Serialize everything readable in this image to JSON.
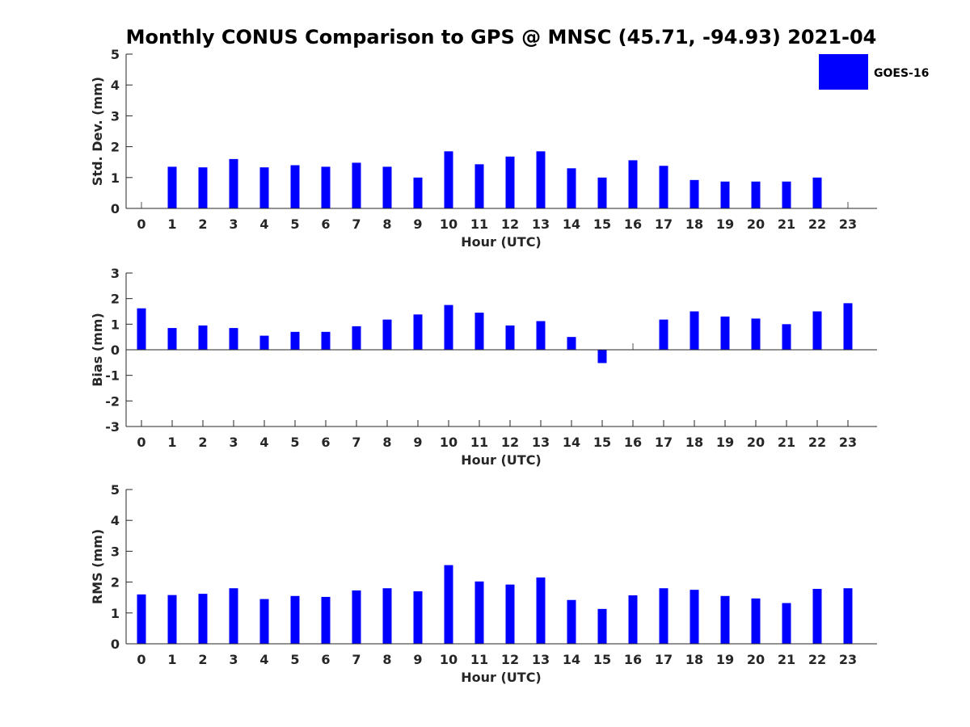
{
  "chart_data": {
    "title": "Monthly CONUS Comparison to GPS @ MNSC (45.71, -94.93) 2021-04",
    "legend": {
      "label": "GOES-16",
      "color": "#0000ff",
      "placement": "top-right"
    },
    "panels": [
      {
        "type": "bar",
        "name": "std-dev",
        "ylabel": "Std. Dev. (mm)",
        "xlabel": "Hour (UTC)",
        "ylim": [
          0,
          5
        ],
        "yticks": [
          "0",
          "1",
          "2",
          "3",
          "4",
          "5"
        ],
        "categories": [
          "0",
          "1",
          "2",
          "3",
          "4",
          "5",
          "6",
          "7",
          "8",
          "9",
          "10",
          "11",
          "12",
          "13",
          "14",
          "15",
          "16",
          "17",
          "18",
          "19",
          "20",
          "21",
          "22",
          "23"
        ],
        "values": [
          null,
          1.35,
          1.33,
          1.6,
          1.33,
          1.4,
          1.35,
          1.48,
          1.35,
          1.0,
          1.85,
          1.43,
          1.68,
          1.85,
          1.3,
          1.0,
          1.56,
          1.38,
          0.92,
          0.87,
          0.87,
          0.87,
          1.0,
          null
        ]
      },
      {
        "type": "bar",
        "name": "bias",
        "ylabel": "Bias (mm)",
        "xlabel": "Hour (UTC)",
        "ylim": [
          -3,
          3
        ],
        "yticks": [
          "-3",
          "-2",
          "-1",
          "0",
          "1",
          "2",
          "3"
        ],
        "categories": [
          "0",
          "1",
          "2",
          "3",
          "4",
          "5",
          "6",
          "7",
          "8",
          "9",
          "10",
          "11",
          "12",
          "13",
          "14",
          "15",
          "16",
          "17",
          "18",
          "19",
          "20",
          "21",
          "22",
          "23"
        ],
        "values": [
          1.62,
          0.85,
          0.95,
          0.85,
          0.55,
          0.7,
          0.7,
          0.92,
          1.18,
          1.38,
          1.75,
          1.45,
          0.95,
          1.12,
          0.5,
          -0.52,
          null,
          1.18,
          1.5,
          1.3,
          1.22,
          1.0,
          1.5,
          1.82
        ]
      },
      {
        "type": "bar",
        "name": "rms",
        "ylabel": "RMS (mm)",
        "xlabel": "Hour (UTC)",
        "ylim": [
          0,
          5
        ],
        "yticks": [
          "0",
          "1",
          "2",
          "3",
          "4",
          "5"
        ],
        "categories": [
          "0",
          "1",
          "2",
          "3",
          "4",
          "5",
          "6",
          "7",
          "8",
          "9",
          "10",
          "11",
          "12",
          "13",
          "14",
          "15",
          "16",
          "17",
          "18",
          "19",
          "20",
          "21",
          "22",
          "23"
        ],
        "values": [
          1.6,
          1.58,
          1.62,
          1.8,
          1.45,
          1.55,
          1.52,
          1.73,
          1.8,
          1.7,
          2.55,
          2.02,
          1.92,
          2.15,
          1.42,
          1.13,
          1.57,
          1.8,
          1.75,
          1.55,
          1.47,
          1.32,
          1.78,
          1.8
        ]
      }
    ]
  }
}
